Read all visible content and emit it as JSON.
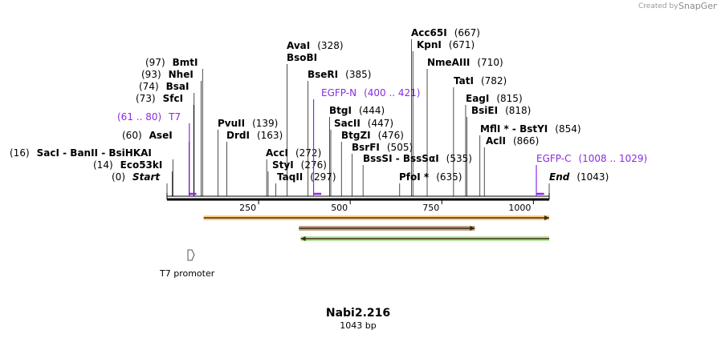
{
  "watermark": {
    "created_by": "Created by",
    "brand": "SnapGene"
  },
  "map": {
    "name": "Nabi2.216",
    "length_label": "1043 bp",
    "length": 1043,
    "ticks": [
      250,
      500,
      750,
      1000
    ]
  },
  "sites": [
    {
      "id": "sacI-group",
      "pos": 16,
      "num": "(16)",
      "name": "SacI  - BanII  - BsiHKAI",
      "style": "bold"
    },
    {
      "id": "eco53ki",
      "pos": 14,
      "num": "(14)",
      "name": "Eco53kI",
      "style": "bold"
    },
    {
      "id": "start",
      "pos": 0,
      "num": "(0)",
      "name": "Start",
      "style": "italic"
    },
    {
      "id": "asei",
      "pos": 60,
      "num": "(60)",
      "name": "AseI",
      "style": "bold"
    },
    {
      "id": "t7",
      "pos": 61,
      "num": "(61 .. 80)",
      "name": "T7",
      "style": "purple",
      "name_first": false
    },
    {
      "id": "sfci",
      "pos": 73,
      "num": "(73)",
      "name": "SfcI",
      "style": "bold"
    },
    {
      "id": "bsai",
      "pos": 74,
      "num": "(74)",
      "name": "BsaI",
      "style": "bold"
    },
    {
      "id": "nhei",
      "pos": 93,
      "num": "(93)",
      "name": "NheI",
      "style": "bold"
    },
    {
      "id": "bmti",
      "pos": 97,
      "num": "(97)",
      "name": "BmtI",
      "style": "bold"
    },
    {
      "id": "pvuii",
      "pos": 139,
      "num": "(139)",
      "name": "PvuII",
      "style": "bold",
      "name_first": true
    },
    {
      "id": "drdi",
      "pos": 163,
      "num": "(163)",
      "name": "DrdI",
      "style": "bold",
      "name_first": true
    },
    {
      "id": "acci",
      "pos": 272,
      "num": "(272)",
      "name": "AccI",
      "style": "bold",
      "name_first": true
    },
    {
      "id": "styi",
      "pos": 276,
      "num": "(276)",
      "name": "StyI",
      "style": "bold",
      "name_first": true
    },
    {
      "id": "taqii",
      "pos": 297,
      "num": "(297)",
      "name": "TaqII",
      "style": "bold",
      "name_first": true
    },
    {
      "id": "avai",
      "pos": 328,
      "num": "(328)",
      "name": "AvaI",
      "style": "bold",
      "name_first": true
    },
    {
      "id": "bsobi",
      "pos": 328,
      "num": "",
      "name": "BsoBI",
      "style": "bold",
      "name_first": true
    },
    {
      "id": "bseri",
      "pos": 385,
      "num": "(385)",
      "name": "BseRI",
      "style": "bold",
      "name_first": true
    },
    {
      "id": "egfp-n",
      "pos": 400,
      "num": "(400 .. 421)",
      "name": "EGFP-N",
      "style": "purple",
      "name_first": true
    },
    {
      "id": "btgi",
      "pos": 444,
      "num": "(444)",
      "name": "BtgI",
      "style": "bold",
      "name_first": true
    },
    {
      "id": "sacii",
      "pos": 447,
      "num": "(447)",
      "name": "SacII",
      "style": "bold",
      "name_first": true
    },
    {
      "id": "btgzi",
      "pos": 476,
      "num": "(476)",
      "name": "BtgZI",
      "style": "bold",
      "name_first": true
    },
    {
      "id": "bsrfi",
      "pos": 505,
      "num": "(505)",
      "name": "BsrFI",
      "style": "bold",
      "name_first": true
    },
    {
      "id": "bsssi",
      "pos": 535,
      "num": "(535)",
      "name": "BssSI  - BssSαI",
      "style": "bold",
      "name_first": true
    },
    {
      "id": "pfoi",
      "pos": 635,
      "num": "(635)",
      "name": "PfoI *",
      "style": "bold",
      "name_first": true
    },
    {
      "id": "acc65i",
      "pos": 667,
      "num": "(667)",
      "name": "Acc65I",
      "style": "bold",
      "name_first": true
    },
    {
      "id": "kpni",
      "pos": 671,
      "num": "(671)",
      "name": "KpnI",
      "style": "bold",
      "name_first": true
    },
    {
      "id": "nmeaiii",
      "pos": 710,
      "num": "(710)",
      "name": "NmeAIII",
      "style": "bold",
      "name_first": true
    },
    {
      "id": "tati",
      "pos": 782,
      "num": "(782)",
      "name": "TatI",
      "style": "bold",
      "name_first": true
    },
    {
      "id": "eagi",
      "pos": 815,
      "num": "(815)",
      "name": "EagI",
      "style": "bold",
      "name_first": true
    },
    {
      "id": "bsiei",
      "pos": 818,
      "num": "(818)",
      "name": "BsiEI",
      "style": "bold",
      "name_first": true
    },
    {
      "id": "mfli",
      "pos": 854,
      "num": "(854)",
      "name": "MflI * - BstYI",
      "style": "bold",
      "name_first": true
    },
    {
      "id": "acli",
      "pos": 866,
      "num": "(866)",
      "name": "AclI",
      "style": "bold",
      "name_first": true
    },
    {
      "id": "egfp-c",
      "pos": 1008,
      "num": "(1008 .. 1029)",
      "name": "EGFP-C",
      "style": "purple",
      "name_first": true
    },
    {
      "id": "end",
      "pos": 1043,
      "num": "(1043)",
      "name": "End",
      "style": "italic",
      "name_first": true
    }
  ],
  "features": [
    {
      "id": "orf-orange",
      "start": 100,
      "end": 1043,
      "color": "#f5a623",
      "dir": "forward"
    },
    {
      "id": "orf-brown",
      "start": 360,
      "end": 840,
      "color": "#8b5a2b",
      "dir": "forward"
    },
    {
      "id": "orf-green",
      "start": 365,
      "end": 1043,
      "color": "#7ec850",
      "dir": "reverse"
    }
  ],
  "promoter": {
    "label": "T7 promoter",
    "pos": 61
  },
  "primers": [
    {
      "id": "t7-primer",
      "start": 61,
      "end": 80
    },
    {
      "id": "egfp-n-primer",
      "start": 400,
      "end": 421
    },
    {
      "id": "egfp-c-primer",
      "start": 1008,
      "end": 1029
    }
  ]
}
